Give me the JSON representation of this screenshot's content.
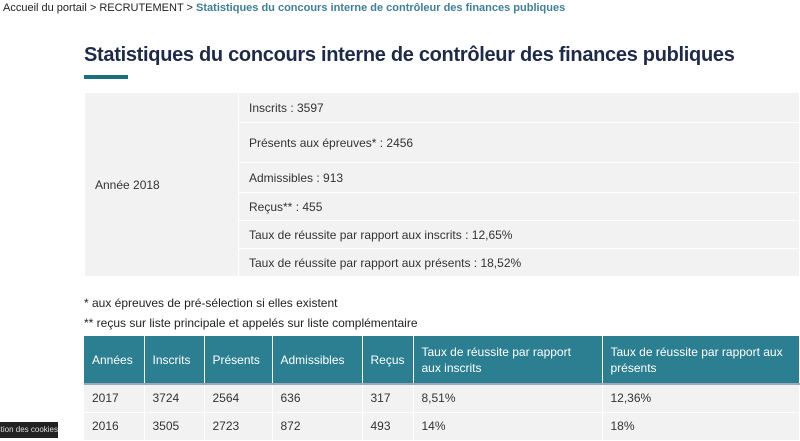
{
  "breadcrumb": {
    "items": [
      "Accueil du portail",
      "RECRUTEMENT"
    ],
    "sep": ">",
    "current": "Statistiques du concours interne de contrôleur des finances publiques"
  },
  "title": "Statistiques du concours interne de contrôleur des finances publiques",
  "summary": {
    "year": "Année 2018",
    "rows": [
      "Inscrits : 3597",
      "Présents aux épreuves* : 2456",
      "Admissibles : 913",
      "Reçus** : 455",
      "Taux de réussite par rapport aux inscrits : 12,65%",
      "Taux de réussite par rapport aux présents : 18,52%"
    ]
  },
  "notes": [
    "* aux épreuves de pré-sélection si elles existent",
    "** reçus sur liste principale et appelés sur liste complémentaire"
  ],
  "table": {
    "headers": [
      "Années",
      "Inscrits",
      "Présents",
      "Admissibles",
      "Reçus",
      "Taux de réussite par rapport aux inscrits",
      "Taux de réussite par rapport aux présents"
    ],
    "rows": [
      [
        "2017",
        "3724",
        "2564",
        "636",
        "317",
        "8,51%",
        "12,36%"
      ],
      [
        "2016",
        "3505",
        "2723",
        "872",
        "493",
        "14%",
        "18%"
      ]
    ]
  },
  "cookie_banner": "Gestion des cookies"
}
